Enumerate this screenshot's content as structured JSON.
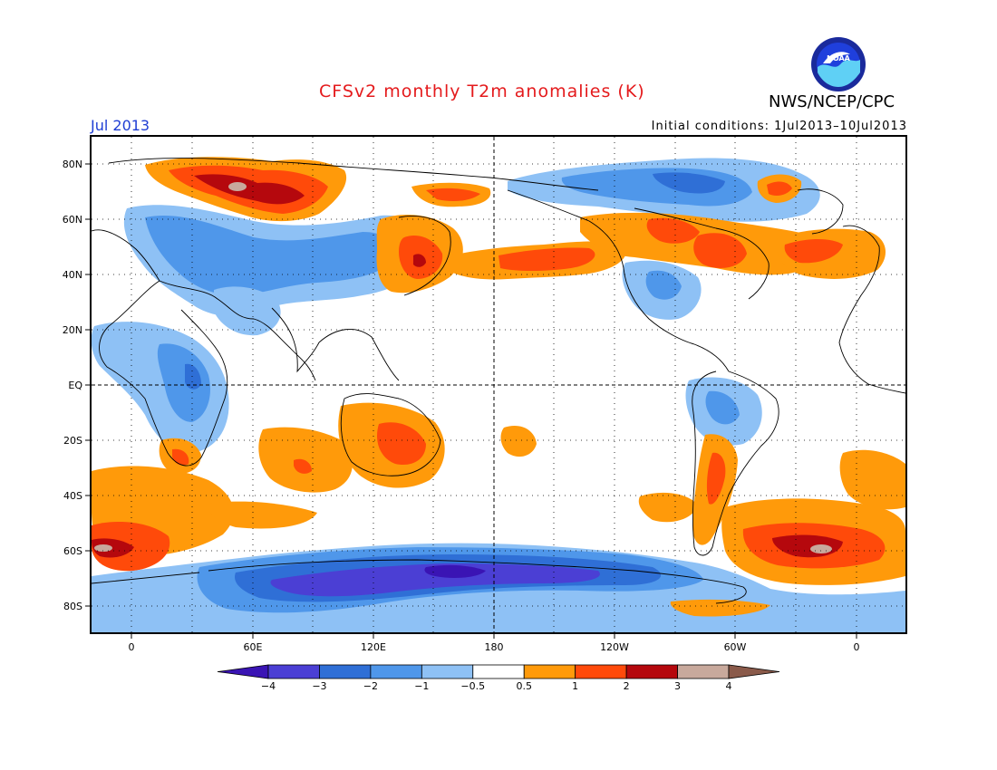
{
  "header": {
    "title": "CFSv2 monthly T2m anomalies (K)",
    "agency": "NWS/NCEP/CPC",
    "logo_text": "NOAA",
    "month": "Jul 2013",
    "initial_conditions": "Initial conditions: 1Jul2013–10Jul2013"
  },
  "map": {
    "lon_labels": [
      "0",
      "60E",
      "120E",
      "180",
      "120W",
      "60W",
      "0"
    ],
    "lat_labels": [
      "80N",
      "60N",
      "40N",
      "20N",
      "EQ",
      "20S",
      "40S",
      "60S",
      "80S"
    ]
  },
  "colorbar": {
    "labels": [
      "−4",
      "−3",
      "−2",
      "−1",
      "−0.5",
      "0.5",
      "1",
      "2",
      "3",
      "4"
    ],
    "colors": [
      "#3a14b4",
      "#4b3fd4",
      "#2f6fd6",
      "#4f97ea",
      "#8ec1f5",
      "#ffffff",
      "#ff9a0a",
      "#ff4a0a",
      "#b5080d",
      "#c8a99c",
      "#8a5a4a"
    ]
  }
}
